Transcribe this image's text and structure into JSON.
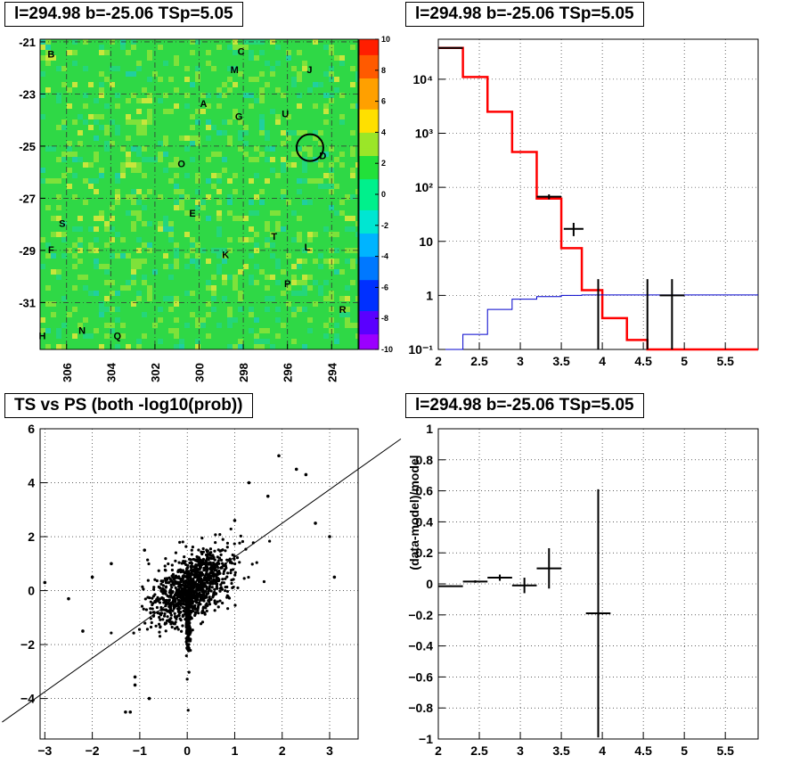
{
  "panels": {
    "map_title": "l=294.98 b=-25.06 TSp=5.05",
    "spectrum_title": "l=294.98 b=-25.06 TSp=5.05",
    "scatter_title": "TS vs PS (both -log10(prob))",
    "residual_title": "l=294.98 b=-25.06 TSp=5.05"
  },
  "chart_data": [
    {
      "type": "heatmap",
      "title": "l=294.98 b=-25.06 TSp=5.05",
      "x_ticks": [
        "306",
        "304",
        "302",
        "300",
        "298",
        "296",
        "294"
      ],
      "x_tick_values": [
        306,
        304,
        302,
        300,
        298,
        296,
        294
      ],
      "y_ticks": [
        "-21",
        "-23",
        "-25",
        "-27",
        "-29",
        "-31"
      ],
      "y_tick_values": [
        -21,
        -23,
        -25,
        -27,
        -29,
        -31
      ],
      "xlim": [
        307.2,
        292.8
      ],
      "ylim": [
        -32.8,
        -20.9
      ],
      "colorbar_ticks": [
        "10",
        "8",
        "6",
        "4",
        "2",
        "0",
        "-2",
        "-4",
        "-6",
        "-8",
        "-10"
      ],
      "colorbar_values": [
        10,
        8,
        6,
        4,
        2,
        0,
        -2,
        -4,
        -6,
        -8,
        -10
      ],
      "colorbar_range": [
        -10,
        10
      ],
      "colors": {
        "background_field": "#22d83a",
        "circle": "#000000"
      },
      "source_labels": [
        {
          "label": "B",
          "l": 306.7,
          "b": -21.6
        },
        {
          "label": "C",
          "l": 298.1,
          "b": -21.5
        },
        {
          "label": "M",
          "l": 298.4,
          "b": -22.2
        },
        {
          "label": "J",
          "l": 295.0,
          "b": -22.2
        },
        {
          "label": "A",
          "l": 299.8,
          "b": -23.5
        },
        {
          "label": "G",
          "l": 298.2,
          "b": -24.0
        },
        {
          "label": "U",
          "l": 296.1,
          "b": -23.9
        },
        {
          "label": "D",
          "l": 294.4,
          "b": -25.5
        },
        {
          "label": "O",
          "l": 300.8,
          "b": -25.8
        },
        {
          "label": "E",
          "l": 300.3,
          "b": -27.7
        },
        {
          "label": "S",
          "l": 306.2,
          "b": -28.1
        },
        {
          "label": "T",
          "l": 296.6,
          "b": -28.6
        },
        {
          "label": "L",
          "l": 295.1,
          "b": -29.0
        },
        {
          "label": "F",
          "l": 306.7,
          "b": -29.1
        },
        {
          "label": "K",
          "l": 298.8,
          "b": -29.3
        },
        {
          "label": "P",
          "l": 296.0,
          "b": -30.4
        },
        {
          "label": "R",
          "l": 293.5,
          "b": -31.4
        },
        {
          "label": "H",
          "l": 307.1,
          "b": -32.4
        },
        {
          "label": "N",
          "l": 305.3,
          "b": -32.2
        },
        {
          "label": "Q",
          "l": 303.7,
          "b": -32.4
        }
      ],
      "highlight_circle": {
        "l": 294.98,
        "b": -25.06
      }
    },
    {
      "type": "line",
      "title": "l=294.98 b=-25.06 TSp=5.05",
      "x_ticks": [
        "2",
        "2.5",
        "3",
        "3.5",
        "4",
        "4.5",
        "5",
        "5.5"
      ],
      "x_tick_values": [
        2,
        2.5,
        3,
        3.5,
        4,
        4.5,
        5,
        5.5
      ],
      "y_ticks": [
        "10^{-1}",
        "1",
        "10",
        "10^{2}",
        "10^{3}",
        "10^{4}"
      ],
      "y_tick_values": [
        0.1,
        1,
        10,
        100,
        1000,
        10000
      ],
      "xlim": [
        2,
        5.9
      ],
      "ylim": [
        0.1,
        55000
      ],
      "yscale": "log",
      "grid": true,
      "series": [
        {
          "color": "#ff0000",
          "edges": [
            2.0,
            2.3,
            2.6,
            2.9,
            3.2,
            3.5,
            3.75,
            4.0,
            4.3,
            4.55,
            4.85,
            5.9
          ],
          "values": [
            38000,
            11000,
            2500,
            450,
            62,
            7.5,
            1.25,
            0.38,
            0.15,
            0.1,
            0.1
          ]
        },
        {
          "color": "#0000cc",
          "edges": [
            2.0,
            2.3,
            2.6,
            2.9,
            3.2,
            3.5,
            3.75,
            4.0,
            4.3,
            4.55,
            4.85,
            5.9
          ],
          "values": [
            0.1,
            0.19,
            0.55,
            0.85,
            0.95,
            1.0,
            1.02,
            1.02,
            1.02,
            1.02,
            1.02
          ]
        },
        {
          "color": "#000000",
          "points": [
            {
              "x": 2.15,
              "xerr": 0.15,
              "y": 38000,
              "ylo": 37000,
              "yhi": 39000
            },
            {
              "x": 3.35,
              "xerr": 0.15,
              "y": 67,
              "ylo": 60,
              "yhi": 74
            },
            {
              "x": 3.65,
              "xerr": 0.12,
              "y": 17,
              "ylo": 12.5,
              "yhi": 22
            },
            {
              "x": 3.95,
              "xerr": 0.0,
              "y": 1,
              "ylo": 0.1,
              "yhi": 2.0
            },
            {
              "x": 4.55,
              "xerr": 0.0,
              "y": 1,
              "ylo": 0.1,
              "yhi": 2.0
            },
            {
              "x": 4.85,
              "xerr": 0.15,
              "y": 1,
              "ylo": 0.1,
              "yhi": 2.0
            }
          ]
        }
      ]
    },
    {
      "type": "scatter",
      "title": "TS vs PS (both -log10(prob))",
      "x_ticks": [
        "−3",
        "−2",
        "−1",
        "0",
        "1",
        "2",
        "3"
      ],
      "x_tick_values": [
        -3,
        -2,
        -1,
        0,
        1,
        2,
        3
      ],
      "y_ticks": [
        "−4",
        "−2",
        "0",
        "2",
        "4",
        "6"
      ],
      "y_tick_values": [
        -4,
        -2,
        0,
        2,
        4,
        6
      ],
      "xlim": [
        -3.1,
        3.6
      ],
      "ylim": [
        -5.5,
        6
      ],
      "grid": true,
      "fit_line": {
        "slope": 1.25,
        "intercept": 0.0
      },
      "highlight_points": [
        [
          1.93,
          5.0
        ],
        [
          2.3,
          4.5
        ],
        [
          2.5,
          4.3
        ],
        [
          1.7,
          3.5
        ],
        [
          1.3,
          4.0
        ],
        [
          2.7,
          2.5
        ],
        [
          3.0,
          2.0
        ],
        [
          3.1,
          0.5
        ],
        [
          -1.2,
          -4.5
        ],
        [
          -1.3,
          -4.5
        ],
        [
          -1.1,
          -3.5
        ],
        [
          -1.1,
          -3.2
        ],
        [
          -0.8,
          -4.0
        ],
        [
          -2.5,
          -0.3
        ],
        [
          -3.0,
          0.3
        ],
        [
          -2.0,
          0.5
        ],
        [
          -1.6,
          1.0
        ],
        [
          -2.2,
          -1.5
        ],
        [
          -0.9,
          1.5
        ],
        [
          1.0,
          2.6
        ]
      ],
      "cloud": {
        "n": 1400,
        "x_mean": 0.1,
        "y_mean": 0.15,
        "x_sd": 0.42,
        "y_sd": 0.55,
        "seed": 7
      }
    },
    {
      "type": "scatter",
      "title": "l=294.98 b=-25.06 TSp=5.05",
      "ylabel": "(data-model)/model",
      "x_ticks": [
        "2",
        "2.5",
        "3",
        "3.5",
        "4",
        "4.5",
        "5",
        "5.5"
      ],
      "x_tick_values": [
        2,
        2.5,
        3,
        3.5,
        4,
        4.5,
        5,
        5.5
      ],
      "y_ticks": [
        "−1",
        "−0.8",
        "−0.6",
        "−0.4",
        "−0.2",
        "0",
        "0.2",
        "0.4",
        "0.6",
        "0.8",
        "1"
      ],
      "y_tick_values": [
        -1,
        -0.8,
        -0.6,
        -0.4,
        -0.2,
        0,
        0.2,
        0.4,
        0.6,
        0.8,
        1
      ],
      "xlim": [
        2,
        5.9
      ],
      "ylim": [
        -1,
        1
      ],
      "grid": true,
      "points": [
        {
          "x": 2.15,
          "xerr": 0.15,
          "y": -0.015,
          "yerr": 0.005
        },
        {
          "x": 2.45,
          "xerr": 0.15,
          "y": 0.015,
          "yerr": 0.008
        },
        {
          "x": 2.75,
          "xerr": 0.15,
          "y": 0.04,
          "yerr": 0.02
        },
        {
          "x": 3.05,
          "xerr": 0.15,
          "y": -0.01,
          "yerr": 0.05
        },
        {
          "x": 3.35,
          "xerr": 0.15,
          "y": 0.1,
          "yerr": 0.13
        },
        {
          "x": 3.95,
          "xerr": 0.15,
          "y": -0.19,
          "yerr": 0.8
        }
      ]
    }
  ]
}
